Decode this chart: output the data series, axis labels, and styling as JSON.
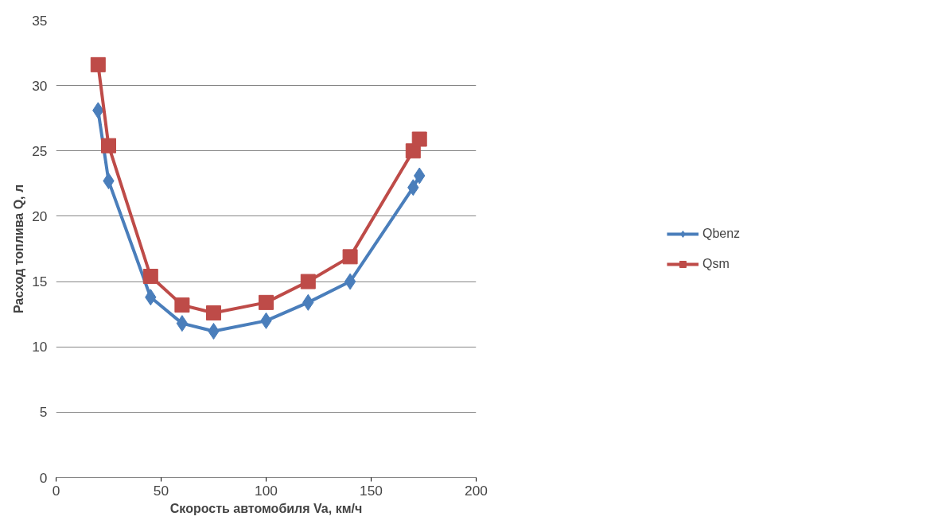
{
  "chart_data": {
    "type": "line",
    "xlabel": "Скорость автомобиля Va, км/ч",
    "ylabel": "Расход топлива Q, л",
    "xlim": [
      0,
      200
    ],
    "xticks": [
      0,
      50,
      100,
      150,
      200
    ],
    "ylim": [
      0,
      35
    ],
    "yticks": [
      0,
      5,
      10,
      15,
      20,
      25,
      30,
      35
    ],
    "grid": "y",
    "legend": "right",
    "series": [
      {
        "name": "Qbenz",
        "color": "#4a7ebb",
        "marker": "diamond",
        "x": [
          20,
          25,
          45,
          60,
          75,
          100,
          120,
          140,
          170,
          173
        ],
        "values": [
          28.1,
          22.7,
          13.8,
          11.8,
          11.2,
          12.0,
          13.4,
          15.0,
          22.2,
          23.1
        ]
      },
      {
        "name": "Qsm",
        "color": "#be4b48",
        "marker": "square",
        "x": [
          20,
          25,
          45,
          60,
          75,
          100,
          120,
          140,
          170,
          173
        ],
        "values": [
          31.6,
          25.4,
          15.4,
          13.2,
          12.6,
          13.4,
          15.0,
          16.9,
          25.0,
          25.9
        ]
      }
    ]
  }
}
